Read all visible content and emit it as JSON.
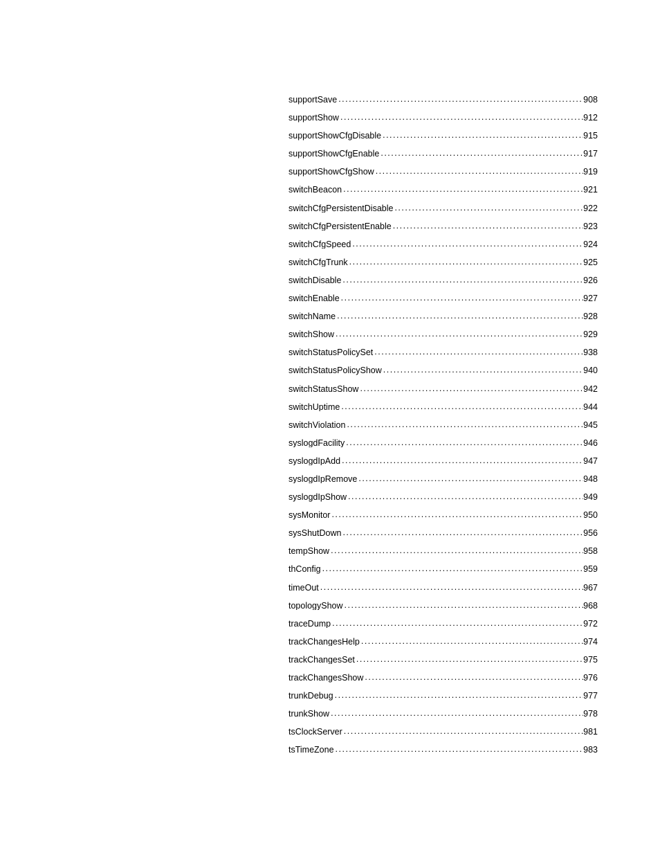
{
  "toc": {
    "entries": [
      {
        "label": "supportSave",
        "page": "908"
      },
      {
        "label": "supportShow",
        "page": "912"
      },
      {
        "label": "supportShowCfgDisable",
        "page": "915"
      },
      {
        "label": "supportShowCfgEnable",
        "page": "917"
      },
      {
        "label": "supportShowCfgShow",
        "page": "919"
      },
      {
        "label": "switchBeacon",
        "page": "921"
      },
      {
        "label": "switchCfgPersistentDisable",
        "page": "922"
      },
      {
        "label": "switchCfgPersistentEnable",
        "page": "923"
      },
      {
        "label": "switchCfgSpeed",
        "page": "924"
      },
      {
        "label": "switchCfgTrunk",
        "page": "925"
      },
      {
        "label": "switchDisable",
        "page": "926"
      },
      {
        "label": "switchEnable",
        "page": "927"
      },
      {
        "label": "switchName",
        "page": "928"
      },
      {
        "label": "switchShow",
        "page": "929"
      },
      {
        "label": "switchStatusPolicySet",
        "page": "938"
      },
      {
        "label": "switchStatusPolicyShow",
        "page": "940"
      },
      {
        "label": "switchStatusShow",
        "page": "942"
      },
      {
        "label": "switchUptime",
        "page": "944"
      },
      {
        "label": "switchViolation",
        "page": "945"
      },
      {
        "label": "syslogdFacility",
        "page": "946"
      },
      {
        "label": "syslogdIpAdd",
        "page": "947"
      },
      {
        "label": "syslogdIpRemove",
        "page": "948"
      },
      {
        "label": "syslogdIpShow",
        "page": "949"
      },
      {
        "label": "sysMonitor",
        "page": "950"
      },
      {
        "label": "sysShutDown",
        "page": "956"
      },
      {
        "label": "tempShow",
        "page": "958"
      },
      {
        "label": "thConfig",
        "page": "959"
      },
      {
        "label": "timeOut",
        "page": "967"
      },
      {
        "label": "topologyShow",
        "page": "968"
      },
      {
        "label": "traceDump",
        "page": "972"
      },
      {
        "label": "trackChangesHelp",
        "page": "974"
      },
      {
        "label": "trackChangesSet",
        "page": "975"
      },
      {
        "label": "trackChangesShow",
        "page": "976"
      },
      {
        "label": "trunkDebug",
        "page": "977"
      },
      {
        "label": "trunkShow",
        "page": "978"
      },
      {
        "label": "tsClockServer",
        "page": "981"
      },
      {
        "label": "tsTimeZone",
        "page": "983"
      }
    ]
  }
}
